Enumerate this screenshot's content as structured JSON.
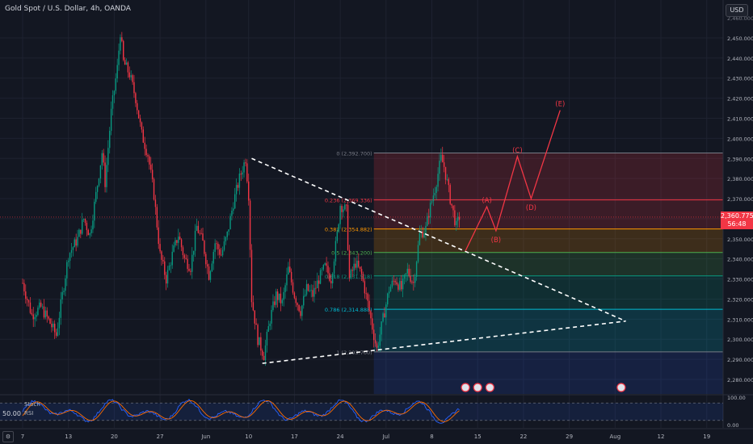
{
  "header": {
    "title": "Gold Spot / U.S. Dollar, 4h, OANDA",
    "currency_button": "USD"
  },
  "price_tag": {
    "price": "2,360.775",
    "countdown": "56:48"
  },
  "oscillator": {
    "stoch_label": "Stoch",
    "rsi_label": "RSI",
    "left_value": "50.00"
  },
  "chart_data": {
    "type": "candlestick",
    "symbol": "XAUUSD",
    "interval": "4h",
    "ylim": [
      2275,
      2465
    ],
    "y_ticks": [
      2280,
      2290,
      2300,
      2310,
      2320,
      2330,
      2340,
      2350,
      2360,
      2370,
      2380,
      2390,
      2400,
      2410,
      2420,
      2430,
      2440,
      2450
    ],
    "y_tick_labels": [
      "2,280.000",
      "2,290.000",
      "2,300.000",
      "2,310.000",
      "2,320.000",
      "2,330.000",
      "2,340.000",
      "2,350.000",
      "2,360.000",
      "2,370.000",
      "2,380.000",
      "2,390.000",
      "2,400.000",
      "2,410.000",
      "2,420.000",
      "2,430.000",
      "2,440.000",
      "2,450.000"
    ],
    "top_tick_label": "2,460.000",
    "x_labels": [
      "7",
      "13",
      "20",
      "27",
      "Jun",
      "10",
      "17",
      "24",
      "Jul",
      "8",
      "15",
      "22",
      "29",
      "Aug",
      "12",
      "19"
    ],
    "x_label_index": [
      0,
      30,
      60,
      90,
      120,
      148,
      178,
      208,
      238,
      268,
      298,
      328,
      358,
      388,
      418,
      448
    ],
    "current_price": 2360.775,
    "close_path": [
      [
        0,
        2328
      ],
      [
        6,
        2312
      ],
      [
        12,
        2316
      ],
      [
        18,
        2308
      ],
      [
        22,
        2302
      ],
      [
        26,
        2322
      ],
      [
        30,
        2342
      ],
      [
        36,
        2350
      ],
      [
        40,
        2360
      ],
      [
        44,
        2352
      ],
      [
        48,
        2372
      ],
      [
        52,
        2393
      ],
      [
        54,
        2378
      ],
      [
        58,
        2413
      ],
      [
        62,
        2435
      ],
      [
        64,
        2453
      ],
      [
        66,
        2438
      ],
      [
        70,
        2432
      ],
      [
        74,
        2420
      ],
      [
        78,
        2402
      ],
      [
        82,
        2392
      ],
      [
        86,
        2372
      ],
      [
        90,
        2342
      ],
      [
        94,
        2330
      ],
      [
        98,
        2342
      ],
      [
        102,
        2352
      ],
      [
        106,
        2340
      ],
      [
        110,
        2336
      ],
      [
        114,
        2356
      ],
      [
        118,
        2348
      ],
      [
        122,
        2332
      ],
      [
        126,
        2348
      ],
      [
        130,
        2342
      ],
      [
        134,
        2352
      ],
      [
        138,
        2368
      ],
      [
        142,
        2380
      ],
      [
        146,
        2390
      ],
      [
        148,
        2372
      ],
      [
        150,
        2320
      ],
      [
        154,
        2300
      ],
      [
        158,
        2292
      ],
      [
        162,
        2310
      ],
      [
        166,
        2322
      ],
      [
        170,
        2318
      ],
      [
        174,
        2335
      ],
      [
        178,
        2322
      ],
      [
        182,
        2314
      ],
      [
        186,
        2325
      ],
      [
        190,
        2322
      ],
      [
        194,
        2330
      ],
      [
        198,
        2336
      ],
      [
        202,
        2330
      ],
      [
        206,
        2352
      ],
      [
        208,
        2367
      ],
      [
        212,
        2364
      ],
      [
        214,
        2330
      ],
      [
        218,
        2338
      ],
      [
        222,
        2332
      ],
      [
        226,
        2318
      ],
      [
        230,
        2302
      ],
      [
        232,
        2295
      ],
      [
        236,
        2310
      ],
      [
        240,
        2325
      ],
      [
        244,
        2330
      ],
      [
        248,
        2325
      ],
      [
        252,
        2334
      ],
      [
        256,
        2328
      ],
      [
        260,
        2352
      ],
      [
        264,
        2355
      ],
      [
        266,
        2363
      ],
      [
        270,
        2375
      ],
      [
        274,
        2390
      ],
      [
        276,
        2386
      ],
      [
        280,
        2370
      ],
      [
        284,
        2356
      ],
      [
        286,
        2361
      ]
    ],
    "fibonacci": [
      {
        "level": "0",
        "price": 2392.7,
        "label": "0 (2,392.700)",
        "color": "#787b86"
      },
      {
        "level": "0.236",
        "price": 2369.336,
        "label": "0.236 (2,369.336)",
        "color": "#f23645"
      },
      {
        "level": "0.382",
        "price": 2354.882,
        "label": "0.382 (2,354.882)",
        "color": "#ff9800"
      },
      {
        "level": "0.5",
        "price": 2343.2,
        "label": "0.5 (2,343.200)",
        "color": "#4caf50"
      },
      {
        "level": "0.618",
        "price": 2331.518,
        "label": "0.618 (2,331.518)",
        "color": "#089981"
      },
      {
        "level": "0.786",
        "price": 2314.888,
        "label": "0.786 (2,314.888)",
        "color": "#00bcd4"
      },
      {
        "level": "1",
        "price": 2293.7,
        "label": "1 (2,293.700)",
        "color": "#787b86"
      }
    ],
    "fib_range": [
      230,
      445
    ],
    "fib_zones": [
      "#f23645",
      "#f23645",
      "#ff9800",
      "#4caf50",
      "#089981",
      "#00bcd4",
      "#5b6bbf"
    ],
    "triangle_upper": [
      [
        150,
        2390
      ],
      [
        395,
        2309
      ]
    ],
    "triangle_lower": [
      [
        157,
        2288
      ],
      [
        395,
        2309
      ]
    ],
    "elliott_wave": [
      {
        "label": "",
        "bar": 290,
        "price": 2344
      },
      {
        "label": "(A)",
        "bar": 304,
        "price": 2366
      },
      {
        "label": "(B)",
        "bar": 310,
        "price": 2354
      },
      {
        "label": "(C)",
        "bar": 324,
        "price": 2391
      },
      {
        "label": "(D)",
        "bar": 333,
        "price": 2370
      },
      {
        "label": "(E)",
        "bar": 352,
        "price": 2414
      }
    ],
    "event_markers": [
      {
        "bar": 290,
        "label": "US"
      },
      {
        "bar": 298,
        "label": "US"
      },
      {
        "bar": 306,
        "label": "US"
      },
      {
        "bar": 392,
        "label": "US"
      }
    ],
    "oscillator": {
      "label": "Stoch RSI",
      "ylim": [
        0,
        100
      ],
      "levels": [
        20,
        80
      ],
      "right_ticks": [
        "100.00",
        "0.00"
      ],
      "k_color": "#2962ff",
      "d_color": "#ff6d00"
    }
  }
}
